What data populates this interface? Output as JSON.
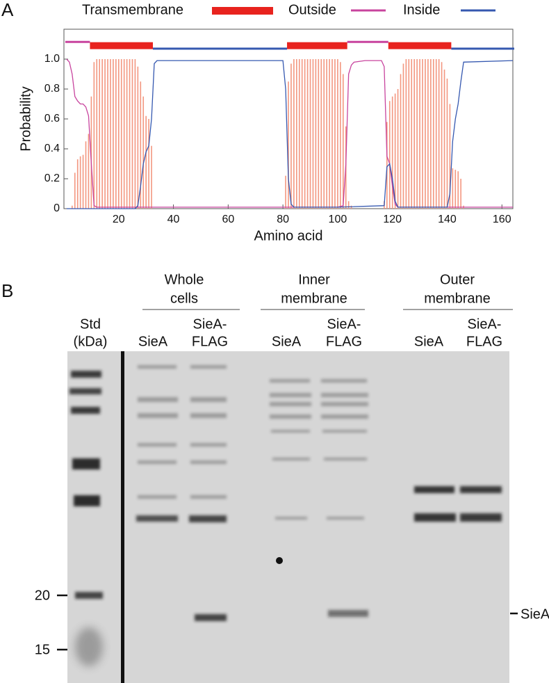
{
  "chart_data": {
    "type": "line",
    "panel_label": "A",
    "x_label": "Amino acid",
    "y_label": "Probability",
    "xlim": [
      0,
      164
    ],
    "ylim": [
      0,
      1.2
    ],
    "xticks": [
      20,
      40,
      60,
      80,
      100,
      120,
      140,
      160
    ],
    "yticks": [
      0,
      0.2,
      0.4,
      0.6,
      0.8,
      {
        "value": 1,
        "label": "1.0"
      }
    ],
    "series": [
      {
        "name": "Transmembrane",
        "color": "#e8231e",
        "bar_color": "#f3967f",
        "style": "bars",
        "segments": [
          [
            10,
            32
          ],
          [
            82,
            103
          ],
          [
            119,
            141
          ]
        ],
        "x": [
          3,
          4,
          5,
          6,
          7,
          8,
          9,
          10,
          11,
          12,
          13,
          14,
          15,
          16,
          17,
          18,
          19,
          20,
          21,
          22,
          23,
          24,
          25,
          26,
          27,
          28,
          29,
          30,
          31,
          32,
          81,
          82,
          83,
          84,
          85,
          86,
          87,
          88,
          89,
          90,
          91,
          92,
          93,
          94,
          95,
          96,
          97,
          98,
          99,
          100,
          101,
          102,
          103,
          104,
          105,
          117,
          118,
          119,
          120,
          121,
          122,
          123,
          124,
          125,
          126,
          127,
          128,
          129,
          130,
          131,
          132,
          133,
          134,
          135,
          136,
          137,
          138,
          139,
          140,
          141,
          142,
          143,
          144,
          145,
          146
        ],
        "values": [
          0.02,
          0.24,
          0.33,
          0.35,
          0.36,
          0.45,
          0.5,
          0.75,
          0.98,
          1,
          1,
          1,
          1,
          1,
          1,
          1,
          1,
          1,
          1,
          1,
          1,
          1,
          1,
          1,
          0.95,
          0.85,
          0.75,
          0.62,
          0.6,
          0.42,
          0.22,
          0.85,
          0.97,
          1,
          1,
          1,
          1,
          1,
          1,
          1,
          1,
          1,
          1,
          1,
          1,
          1,
          1,
          1,
          1,
          1,
          0.98,
          0.9,
          0.55,
          0.05,
          0.02,
          0.05,
          0.58,
          0.72,
          0.75,
          0.77,
          0.8,
          0.9,
          0.97,
          1,
          1,
          1,
          1,
          1,
          1,
          1,
          1,
          1,
          1,
          1,
          1,
          1,
          0.98,
          0.93,
          0.87,
          0.7,
          0.27,
          0.26,
          0.25,
          0.2,
          0.02
        ]
      },
      {
        "name": "Outside",
        "color": "#c8449e",
        "style": "line",
        "segments": [
          [
            1,
            9
          ],
          [
            104,
            118
          ]
        ],
        "x": [
          1,
          2,
          3,
          4,
          5,
          6,
          7,
          8,
          9,
          10,
          11,
          12,
          20,
          40,
          60,
          80,
          100,
          102,
          103,
          104,
          105,
          106,
          110,
          116,
          117,
          118,
          119,
          120,
          121,
          122,
          140,
          164
        ],
        "values": [
          1.0,
          0.98,
          0.9,
          0.75,
          0.72,
          0.7,
          0.7,
          0.68,
          0.62,
          0.3,
          0.02,
          0.01,
          0.01,
          0.01,
          0.01,
          0.01,
          0.01,
          0.02,
          0.3,
          0.9,
          0.96,
          0.98,
          0.99,
          0.99,
          0.95,
          0.35,
          0.3,
          0.15,
          0.03,
          0.01,
          0.01,
          0.01
        ]
      },
      {
        "name": "Inside",
        "color": "#3558b0",
        "style": "line",
        "segments": [
          [
            33,
            81
          ],
          [
            142,
            164
          ]
        ],
        "x": [
          1,
          26,
          27,
          28,
          29,
          30,
          31,
          32,
          33,
          34,
          80,
          81,
          82,
          83,
          84,
          100,
          117,
          118,
          119,
          120,
          121,
          122,
          140,
          141,
          142,
          143,
          144,
          145,
          146,
          164
        ],
        "values": [
          0,
          0,
          0.02,
          0.15,
          0.3,
          0.38,
          0.42,
          0.6,
          0.97,
          0.99,
          0.99,
          0.8,
          0.2,
          0.03,
          0.01,
          0.01,
          0.02,
          0.28,
          0.3,
          0.2,
          0.05,
          0.01,
          0.01,
          0.1,
          0.45,
          0.6,
          0.7,
          0.85,
          0.98,
          0.99
        ]
      }
    ]
  },
  "panel_b": {
    "label": "B",
    "groups": [
      [
        "Whole",
        "cells"
      ],
      [
        "Inner",
        "membrane"
      ],
      [
        "Outer",
        "membrane"
      ]
    ],
    "lanes": [
      [
        "Std",
        "(kDa)"
      ],
      [
        "SieA"
      ],
      [
        "SieA-",
        "FLAG"
      ],
      [
        "SieA"
      ],
      [
        "SieA-",
        "FLAG"
      ],
      [
        "SieA"
      ],
      [
        "SieA-",
        "FLAG"
      ]
    ],
    "markers": [
      20,
      15
    ],
    "band_label": "SieA"
  }
}
